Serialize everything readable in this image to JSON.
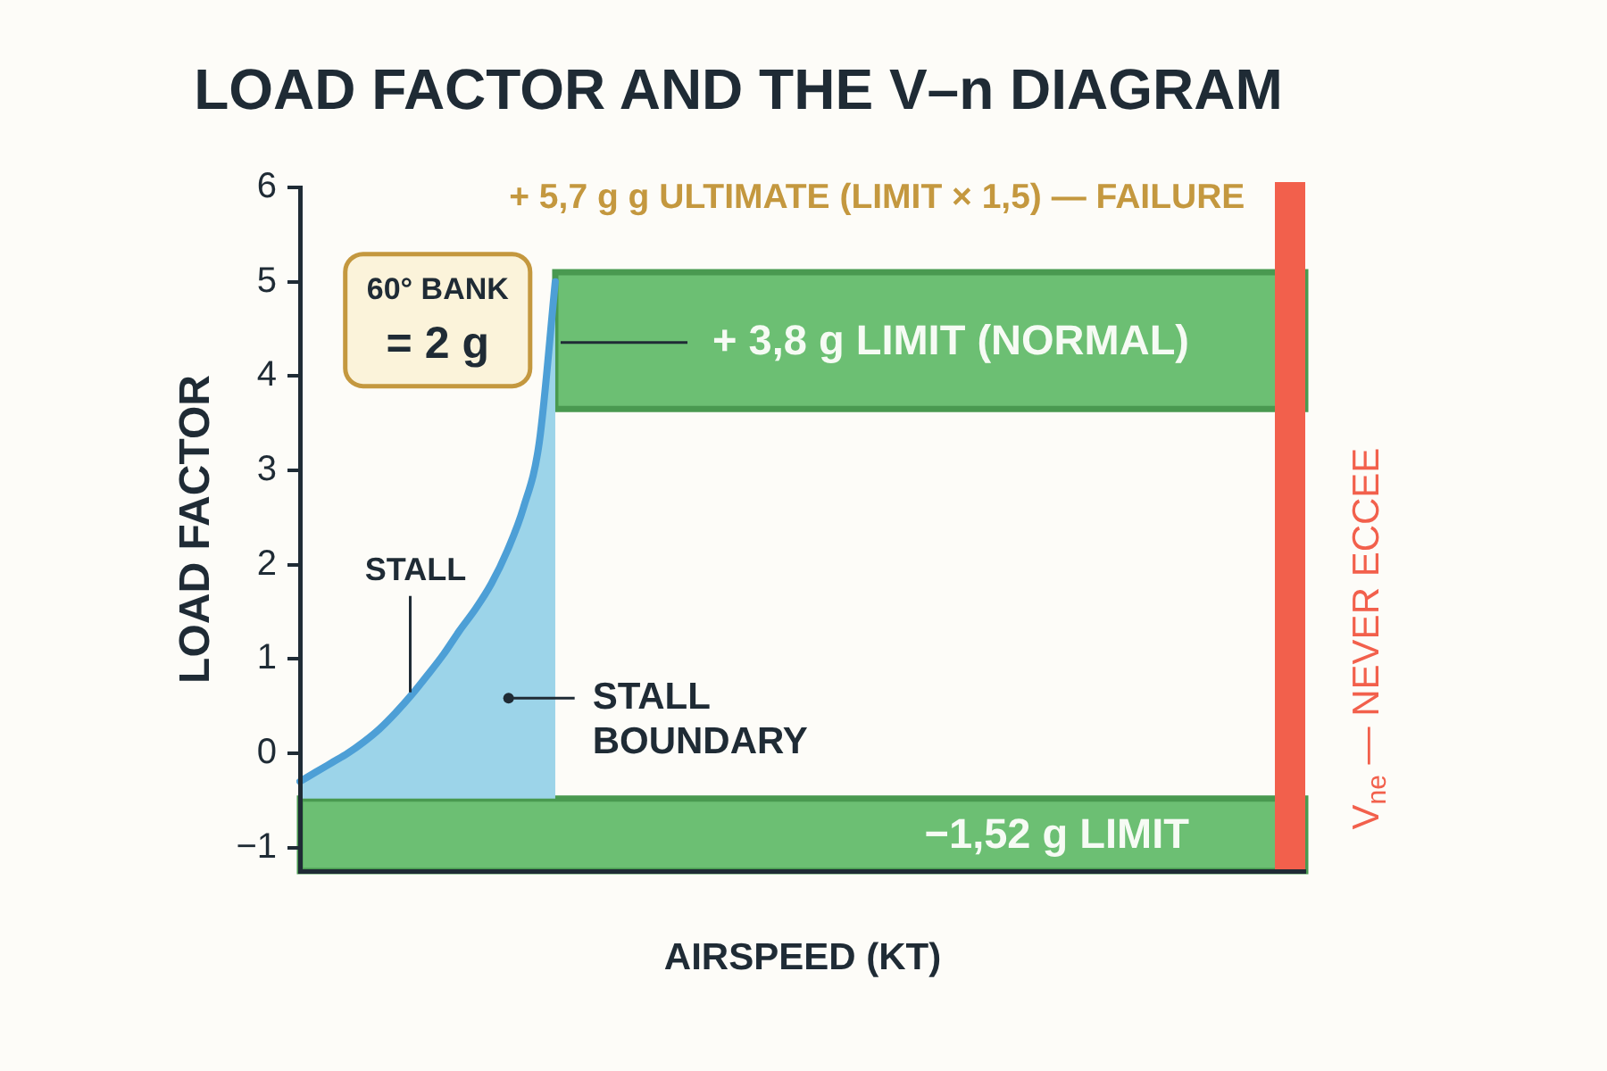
{
  "chart_data": {
    "type": "line",
    "title": "LOAD FACTOR AND THE V–n DIAGRAM",
    "xlabel": "AIRSPEED (KT)",
    "ylabel": "LOAD FACTOR",
    "categories": [
      null,
      null,
      null,
      null,
      null,
      null,
      null,
      null,
      null,
      null,
      null,
      null,
      null,
      null,
      null,
      null,
      null,
      null,
      null,
      null,
      null,
      null,
      null,
      null,
      null,
      null,
      null,
      null,
      null,
      null,
      null,
      null,
      null,
      null,
      null,
      null,
      null,
      null,
      null,
      null,
      null,
      null,
      null,
      null,
      null,
      null,
      null,
      null,
      null,
      null,
      null,
      null,
      null,
      null,
      null,
      null,
      null,
      null,
      null,
      null,
      null,
      null,
      null,
      null
    ],
    "series": [
      {
        "color": "#4d9fd6",
        "values": [
          -0.3,
          -0.2,
          -0.1,
          0,
          0.12,
          0.26,
          0.43,
          0.62,
          0.83,
          1.05,
          1.3,
          1.53,
          1.8,
          2.15,
          2.6,
          3.3,
          5.0,
          null,
          null,
          null,
          null,
          null,
          null,
          null,
          null,
          null,
          null,
          null,
          null,
          null,
          null,
          null,
          null,
          null,
          null,
          null,
          null,
          null,
          null,
          null,
          null,
          null,
          null,
          null,
          null,
          null,
          null,
          null,
          null,
          null,
          null,
          null,
          null,
          null,
          null,
          null,
          null,
          null,
          null,
          null,
          null,
          null,
          null,
          null
        ],
        "lower": [
          -0.48,
          -0.48,
          -0.48,
          -0.48,
          -0.48,
          -0.48,
          -0.48,
          -0.48,
          -0.48,
          -0.48,
          -0.48,
          -0.48,
          -0.48,
          -0.48,
          -0.48,
          -0.48,
          -0.48,
          null,
          null,
          null,
          null,
          null,
          null,
          null,
          null,
          null,
          null,
          null,
          null,
          null,
          null,
          null,
          null,
          null,
          null,
          null,
          null,
          null,
          null,
          null,
          null,
          null,
          null,
          null,
          null,
          null,
          null,
          null,
          null,
          null,
          null,
          null,
          null,
          null,
          null,
          null,
          null,
          null,
          null,
          null,
          null,
          null,
          null,
          null
        ],
        "upper": [
          -0.3,
          -0.2,
          -0.1,
          0,
          0.12,
          0.26,
          0.43,
          0.62,
          0.83,
          1.05,
          1.3,
          1.53,
          1.8,
          2.15,
          2.6,
          3.3,
          5.0,
          null,
          null,
          null,
          null,
          null,
          null,
          null,
          null,
          null,
          null,
          null,
          null,
          null,
          null,
          null,
          null,
          null,
          null,
          null,
          null,
          null,
          null,
          null,
          null,
          null,
          null,
          null,
          null,
          null,
          null,
          null,
          null,
          null,
          null,
          null,
          null,
          null,
          null,
          null,
          null,
          null,
          null,
          null,
          null,
          null,
          null,
          null
        ]
      }
    ],
    "ylim": [
      -1.25,
      6
    ],
    "yticks": [
      {
        "value": -1,
        "label": "−1"
      },
      0,
      1,
      2,
      3,
      4,
      5,
      6
    ],
    "tick_labels": "y",
    "bands": [
      {
        "axis": "y",
        "from": 3.65,
        "to": 5.1,
        "label": "+ 3,8 g LIMIT (NORMAL)",
        "color": "#6cbf73"
      },
      {
        "axis": "y",
        "from": -1.25,
        "to": -0.48,
        "label": "−1,52 g LIMIT",
        "color": "#6cbf73"
      }
    ],
    "ref_lines": [
      {
        "axis": "x",
        "label": "V$_{ne}$ — NEVER ECCEE",
        "color": "#f2604c"
      }
    ],
    "annotations": [
      "+ 5,7 g g ULTIMATE (LIMIT × 1,5) — FAILURE",
      "60° BANK",
      "= 2 g",
      "STALL",
      "STALL BOUNDARY"
    ]
  }
}
